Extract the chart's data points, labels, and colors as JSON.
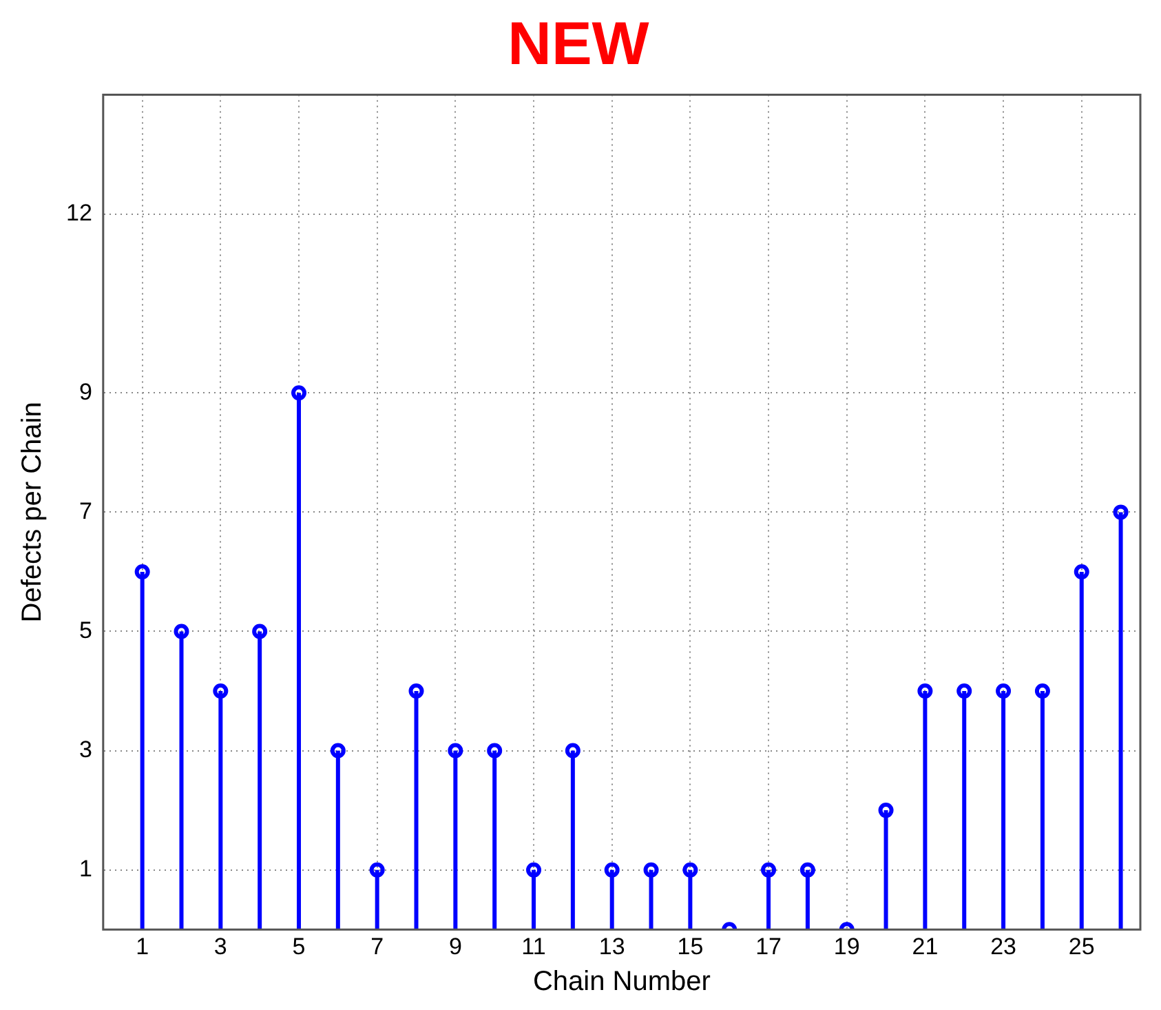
{
  "chart_data": {
    "type": "lollipop",
    "title": "NEW",
    "xlabel": "Chain Number",
    "ylabel": "Defects per Chain",
    "x": [
      1,
      2,
      3,
      4,
      5,
      6,
      7,
      8,
      9,
      10,
      11,
      12,
      13,
      14,
      15,
      16,
      17,
      18,
      19,
      20,
      21,
      22,
      23,
      24,
      25,
      26
    ],
    "values": [
      6,
      5,
      4,
      5,
      9,
      3,
      1,
      4,
      3,
      3,
      1,
      3,
      1,
      1,
      1,
      0,
      1,
      1,
      0,
      2,
      4,
      4,
      4,
      4,
      6,
      7
    ],
    "color": "#0000ff",
    "marker": "circle",
    "grid": true,
    "legend": false,
    "xlim": [
      0,
      26.5
    ],
    "xticks": [
      1,
      3,
      5,
      7,
      9,
      11,
      13,
      15,
      17,
      19,
      21,
      23,
      25
    ],
    "ylim": [
      0,
      14
    ],
    "yticks": [
      1,
      3,
      5,
      7,
      9,
      12
    ]
  }
}
